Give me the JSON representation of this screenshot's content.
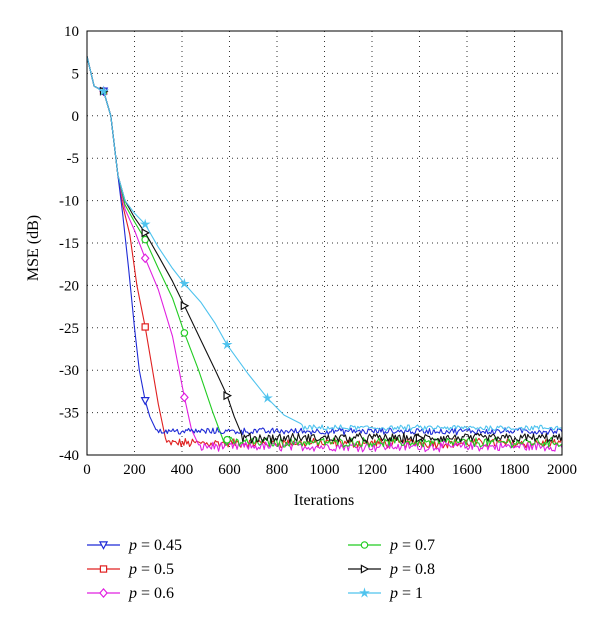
{
  "chart_data": {
    "type": "line",
    "xlabel": "Iterations",
    "ylabel": "MSE (dB)",
    "xlim": [
      0,
      2000
    ],
    "ylim": [
      -40,
      10
    ],
    "xticks": [
      0,
      200,
      400,
      600,
      800,
      1000,
      1200,
      1400,
      1600,
      1800,
      2000
    ],
    "yticks": [
      10,
      5,
      0,
      -5,
      -10,
      -15,
      -20,
      -25,
      -30,
      -35,
      -40
    ],
    "grid": true,
    "legend_position": "below",
    "series": [
      {
        "name": "p = 0.45",
        "var": "p",
        "value": "= 0.45",
        "color": "#1f2bd6",
        "marker": "triangle-down",
        "floor": -37.2,
        "noise": 0.35,
        "points": [
          [
            0,
            7
          ],
          [
            30,
            3.5
          ],
          [
            70,
            2.9
          ],
          [
            100,
            0
          ],
          [
            130,
            -7
          ],
          [
            150,
            -11.5
          ],
          [
            175,
            -18
          ],
          [
            200,
            -25
          ],
          [
            220,
            -30
          ],
          [
            245,
            -33.6
          ],
          [
            265,
            -35.5
          ],
          [
            290,
            -37
          ]
        ],
        "markers": [
          [
            70,
            2.9
          ],
          [
            245,
            -33.6
          ]
        ]
      },
      {
        "name": "p = 0.5",
        "var": "p",
        "value": "= 0.5",
        "color": "#e02020",
        "marker": "square",
        "floor": -38.6,
        "noise": 0.5,
        "points": [
          [
            0,
            7
          ],
          [
            30,
            3.5
          ],
          [
            70,
            2.9
          ],
          [
            100,
            0
          ],
          [
            130,
            -7
          ],
          [
            150,
            -10.5
          ],
          [
            180,
            -14
          ],
          [
            210,
            -20
          ],
          [
            245,
            -24.9
          ],
          [
            270,
            -29
          ],
          [
            300,
            -34
          ],
          [
            330,
            -38
          ]
        ],
        "markers": [
          [
            70,
            2.9
          ],
          [
            245,
            -24.9
          ]
        ]
      },
      {
        "name": "p = 0.6",
        "var": "p",
        "value": "= 0.6",
        "color": "#e020e0",
        "marker": "diamond",
        "floor": -39.0,
        "noise": 0.5,
        "points": [
          [
            0,
            7
          ],
          [
            30,
            3.5
          ],
          [
            70,
            2.9
          ],
          [
            100,
            0
          ],
          [
            130,
            -7
          ],
          [
            160,
            -11
          ],
          [
            200,
            -13.5
          ],
          [
            245,
            -16.8
          ],
          [
            300,
            -20.5
          ],
          [
            360,
            -26
          ],
          [
            410,
            -33.2
          ],
          [
            440,
            -37
          ],
          [
            470,
            -38.8
          ]
        ],
        "markers": [
          [
            70,
            2.9
          ],
          [
            245,
            -16.8
          ],
          [
            410,
            -33.2
          ]
        ]
      },
      {
        "name": "p = 0.7",
        "var": "p",
        "value": "= 0.7",
        "color": "#22cc22",
        "marker": "circle",
        "floor": -38.5,
        "noise": 0.5,
        "points": [
          [
            0,
            7
          ],
          [
            30,
            3.5
          ],
          [
            70,
            2.9
          ],
          [
            100,
            0
          ],
          [
            130,
            -7
          ],
          [
            160,
            -10.5
          ],
          [
            200,
            -12.5
          ],
          [
            245,
            -14.6
          ],
          [
            300,
            -18
          ],
          [
            360,
            -21.5
          ],
          [
            410,
            -25.6
          ],
          [
            470,
            -30
          ],
          [
            530,
            -35
          ],
          [
            570,
            -38
          ]
        ],
        "markers": [
          [
            70,
            2.9
          ],
          [
            245,
            -14.6
          ],
          [
            410,
            -25.6
          ],
          [
            590,
            -38.2
          ]
        ]
      },
      {
        "name": "p = 0.8",
        "var": "p",
        "value": "= 0.8",
        "color": "#111111",
        "marker": "triangle-right",
        "floor": -38.0,
        "noise": 0.5,
        "points": [
          [
            0,
            7
          ],
          [
            30,
            3.5
          ],
          [
            70,
            2.9
          ],
          [
            100,
            0
          ],
          [
            130,
            -7
          ],
          [
            160,
            -10
          ],
          [
            200,
            -12
          ],
          [
            245,
            -13.8
          ],
          [
            300,
            -16.5
          ],
          [
            360,
            -19.5
          ],
          [
            410,
            -22.4
          ],
          [
            480,
            -26.5
          ],
          [
            540,
            -30
          ],
          [
            590,
            -33
          ],
          [
            620,
            -35.5
          ],
          [
            650,
            -37.5
          ]
        ],
        "markers": [
          [
            70,
            2.9
          ],
          [
            245,
            -13.8
          ],
          [
            410,
            -22.4
          ],
          [
            590,
            -33
          ],
          [
            1400,
            -38
          ]
        ]
      },
      {
        "name": "p = 1",
        "var": "p",
        "value": "= 1",
        "color": "#4fc3ee",
        "marker": "star",
        "floor": -36.8,
        "noise": 0.3,
        "points": [
          [
            0,
            7
          ],
          [
            30,
            3.5
          ],
          [
            70,
            2.9
          ],
          [
            100,
            0
          ],
          [
            130,
            -7
          ],
          [
            160,
            -10
          ],
          [
            200,
            -11.5
          ],
          [
            245,
            -12.8
          ],
          [
            300,
            -15.5
          ],
          [
            360,
            -18
          ],
          [
            410,
            -19.8
          ],
          [
            480,
            -22
          ],
          [
            540,
            -24.5
          ],
          [
            590,
            -27
          ],
          [
            680,
            -30.5
          ],
          [
            760,
            -33.3
          ],
          [
            830,
            -35.3
          ],
          [
            900,
            -36.3
          ]
        ],
        "markers": [
          [
            70,
            2.9
          ],
          [
            245,
            -12.8
          ],
          [
            410,
            -19.8
          ],
          [
            590,
            -27
          ],
          [
            760,
            -33.3
          ]
        ]
      }
    ]
  }
}
